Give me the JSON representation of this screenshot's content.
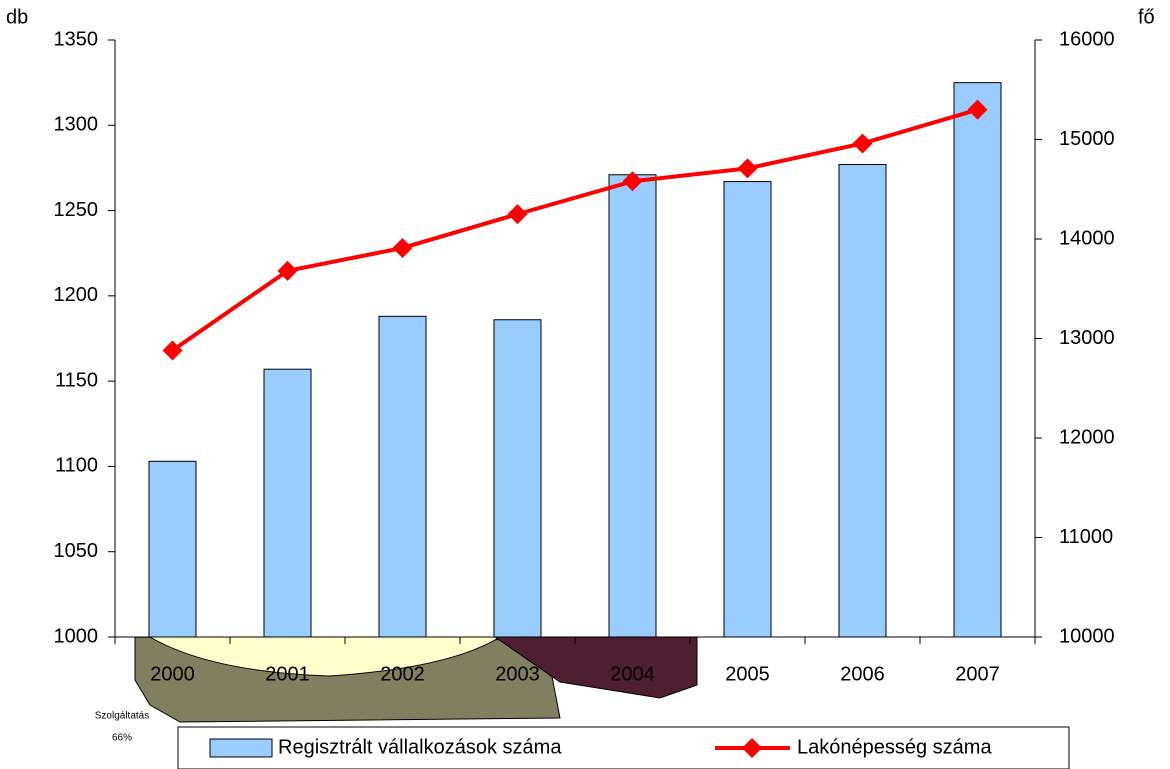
{
  "chart_data": {
    "type": "bar-line",
    "y_label": "db",
    "y2_label": "fő",
    "categories": [
      "2000",
      "2001",
      "2002",
      "2003",
      "2004",
      "2005",
      "2006",
      "2007"
    ],
    "series": [
      {
        "name": "Regisztrált vállalkozások száma",
        "type": "bar",
        "color": "#99ccff",
        "axis": "y",
        "values": [
          1103,
          1157,
          1188,
          1186,
          1271,
          1267,
          1277,
          1325
        ]
      },
      {
        "name": "Lakónépesség száma",
        "type": "line",
        "color": "#ff0000",
        "axis": "y2",
        "values": [
          12880,
          13680,
          13910,
          14250,
          14580,
          14710,
          14960,
          15300
        ]
      }
    ],
    "ylim": [
      1000,
      1350
    ],
    "yticks": [
      1000,
      1050,
      1100,
      1150,
      1200,
      1250,
      1300,
      1350
    ],
    "y2lim": [
      10000,
      16000
    ],
    "y2ticks": [
      10000,
      11000,
      12000,
      13000,
      14000,
      15000,
      16000
    ],
    "grid": false,
    "legend": "bottom",
    "annotations": [
      "Szolgáltatás",
      "66%"
    ]
  }
}
